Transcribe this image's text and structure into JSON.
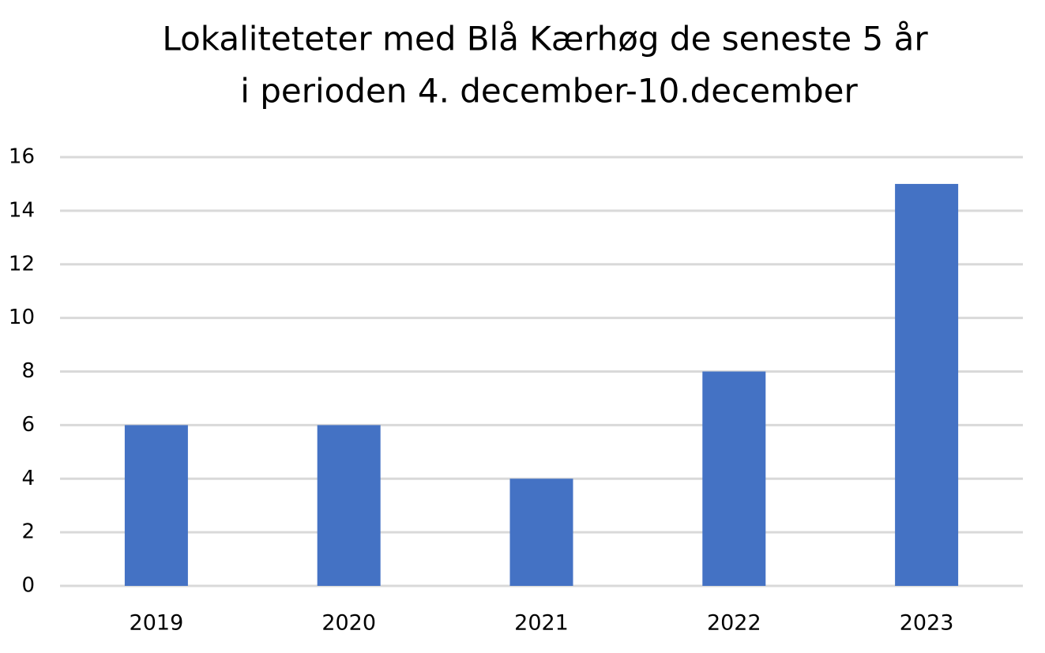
{
  "chart_data": {
    "type": "bar",
    "title": [
      "Lokaliteteter med Blå Kærhøg de seneste 5 år",
      "i perioden 4. december-10.december"
    ],
    "categories": [
      "2019",
      "2020",
      "2021",
      "2022",
      "2023"
    ],
    "values": [
      6,
      6,
      4,
      8,
      15
    ],
    "color": "#4472c4",
    "ylim": [
      0,
      16
    ],
    "yticks": [
      0,
      2,
      4,
      6,
      8,
      10,
      12,
      14,
      16
    ],
    "grid": true
  }
}
